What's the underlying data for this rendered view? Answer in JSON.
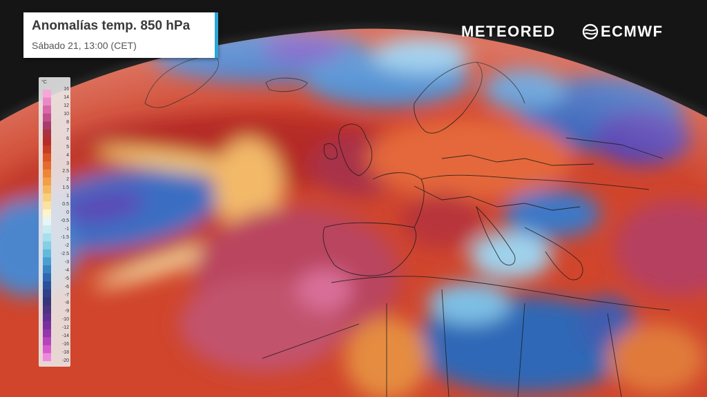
{
  "header": {
    "title": "Anomalías temp. 850 hPa",
    "subtitle": "Sábado 21, 13:00 (CET)"
  },
  "branding": {
    "left": "METEORED",
    "right": "ECMWF"
  },
  "legend": {
    "unit": "°C",
    "labels": [
      "16",
      "14",
      "12",
      "10",
      "8",
      "7",
      "6",
      "5",
      "4",
      "3",
      "2.5",
      "2",
      "1.5",
      "1",
      "0.5",
      "0",
      "-0.5",
      "-1",
      "-1.5",
      "-2",
      "-2.5",
      "-3",
      "-4",
      "-5",
      "-6",
      "-7",
      "-8",
      "-9",
      "-10",
      "-12",
      "-14",
      "-16",
      "-18",
      "-20"
    ],
    "colors": [
      "#f6a6d8",
      "#e98ac6",
      "#d768a9",
      "#c04f8a",
      "#a93b6d",
      "#a8323e",
      "#b82b2b",
      "#c83b24",
      "#d95427",
      "#e46b2e",
      "#ee8638",
      "#f29f48",
      "#f6b85e",
      "#f9cf7c",
      "#fbe2a0",
      "#fff3cc",
      "#e6f5f8",
      "#c8ecf2",
      "#a7dfec",
      "#84cfe6",
      "#63badc",
      "#4a9fd0",
      "#3a83c2",
      "#2f68b1",
      "#2b519c",
      "#2e4189",
      "#35357c",
      "#4a3381",
      "#5f3090",
      "#7a2f9f",
      "#9536ac",
      "#b544bb",
      "#d55cca",
      "#f088dd"
    ]
  },
  "map": {
    "description_colors": {
      "ocean_warm": "#c9362b",
      "anomaly_hot": "#b83b60",
      "anomaly_cold": "#2f6fc1",
      "anomaly_very_cold": "#5a3fb0",
      "space": "#151515"
    }
  }
}
